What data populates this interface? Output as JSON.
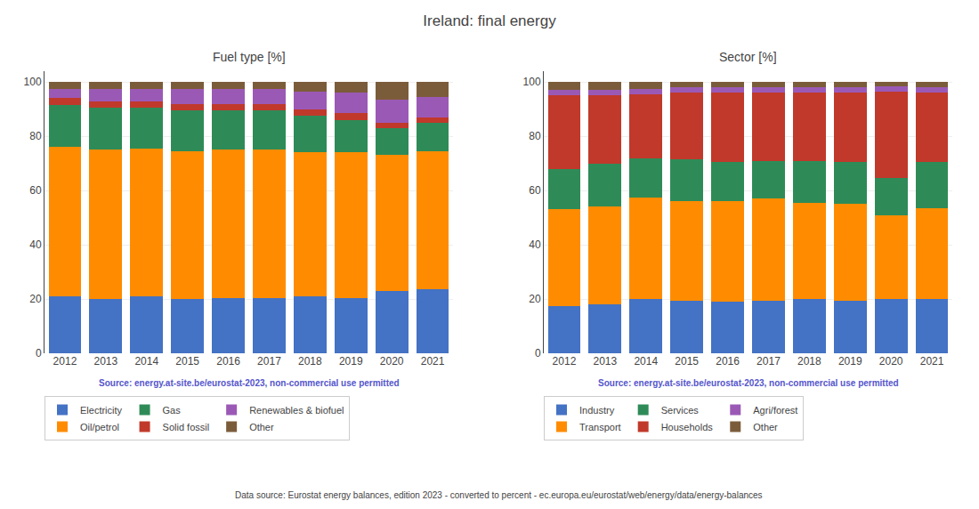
{
  "title": "Ireland: final energy",
  "annotations": [
    "Data source: Eurostat energy balances, edition 2023 - converted to percent - ec.europa.eu/eurostat/web/energy/data/energy-balances"
  ],
  "chart_data": [
    {
      "type": "bar",
      "stacked": true,
      "title": "Fuel type [%]",
      "categories": [
        2012,
        2013,
        2014,
        2015,
        2016,
        2017,
        2018,
        2019,
        2020,
        2021
      ],
      "series": [
        {
          "name": "Electricity",
          "color": "#4472c4",
          "values": [
            21.0,
            20.0,
            21.0,
            20.0,
            20.5,
            20.5,
            21.0,
            20.5,
            23.0,
            23.5
          ]
        },
        {
          "name": "Oil/petrol",
          "color": "#ff8c00",
          "values": [
            55.0,
            55.0,
            54.5,
            54.5,
            54.5,
            54.5,
            53.0,
            53.5,
            50.0,
            51.0
          ]
        },
        {
          "name": "Gas",
          "color": "#2e8b57",
          "values": [
            15.5,
            15.5,
            15.0,
            15.0,
            14.5,
            14.5,
            13.5,
            12.0,
            10.0,
            10.5
          ]
        },
        {
          "name": "Solid fossil",
          "color": "#c0392b",
          "values": [
            2.5,
            2.5,
            2.5,
            2.5,
            2.5,
            2.5,
            2.5,
            2.5,
            2.0,
            2.0
          ]
        },
        {
          "name": "Renewables & biofuel",
          "color": "#9b59b6",
          "values": [
            3.5,
            4.5,
            4.5,
            5.5,
            5.5,
            5.5,
            6.5,
            7.5,
            8.5,
            7.5
          ]
        },
        {
          "name": "Other",
          "color": "#7b5c3a",
          "values": [
            2.5,
            2.5,
            2.5,
            2.5,
            2.5,
            2.5,
            3.5,
            4.0,
            6.5,
            5.5
          ]
        }
      ],
      "ylim": [
        0,
        104
      ],
      "yticks": [
        0,
        20,
        40,
        60,
        80,
        100
      ],
      "grid": true,
      "legend": "bottom",
      "annotations": [
        {
          "text": "Source: energy.at-site.be/eurostat-2023, non-commercial use permitted",
          "color": "#5555cc"
        }
      ]
    },
    {
      "type": "bar",
      "stacked": true,
      "title": "Sector [%]",
      "categories": [
        2012,
        2013,
        2014,
        2015,
        2016,
        2017,
        2018,
        2019,
        2020,
        2021
      ],
      "series": [
        {
          "name": "Industry",
          "color": "#4472c4",
          "values": [
            17.5,
            18.0,
            20.0,
            19.5,
            19.0,
            19.5,
            20.0,
            19.5,
            20.0,
            20.0
          ]
        },
        {
          "name": "Transport",
          "color": "#ff8c00",
          "values": [
            35.5,
            36.0,
            37.5,
            36.5,
            37.0,
            37.5,
            35.5,
            35.5,
            31.0,
            33.5
          ]
        },
        {
          "name": "Services",
          "color": "#2e8b57",
          "values": [
            15.0,
            16.0,
            14.5,
            15.5,
            14.5,
            14.0,
            15.5,
            15.5,
            13.5,
            17.0
          ]
        },
        {
          "name": "Households",
          "color": "#c0392b",
          "values": [
            27.0,
            25.0,
            23.5,
            24.5,
            25.5,
            25.0,
            25.0,
            25.5,
            32.0,
            25.5
          ]
        },
        {
          "name": "Agri/forest",
          "color": "#9b59b6",
          "values": [
            2.0,
            2.0,
            2.0,
            2.0,
            2.0,
            2.0,
            2.0,
            2.0,
            2.0,
            2.0
          ]
        },
        {
          "name": "Other",
          "color": "#7b5c3a",
          "values": [
            3.0,
            3.0,
            2.5,
            2.0,
            2.0,
            2.0,
            2.0,
            2.0,
            1.5,
            2.0
          ]
        }
      ],
      "ylim": [
        0,
        104
      ],
      "yticks": [
        0,
        20,
        40,
        60,
        80,
        100
      ],
      "grid": true,
      "legend": "bottom",
      "annotations": [
        {
          "text": "Source: energy.at-site.be/eurostat-2023, non-commercial use permitted",
          "color": "#5555cc"
        }
      ]
    }
  ]
}
